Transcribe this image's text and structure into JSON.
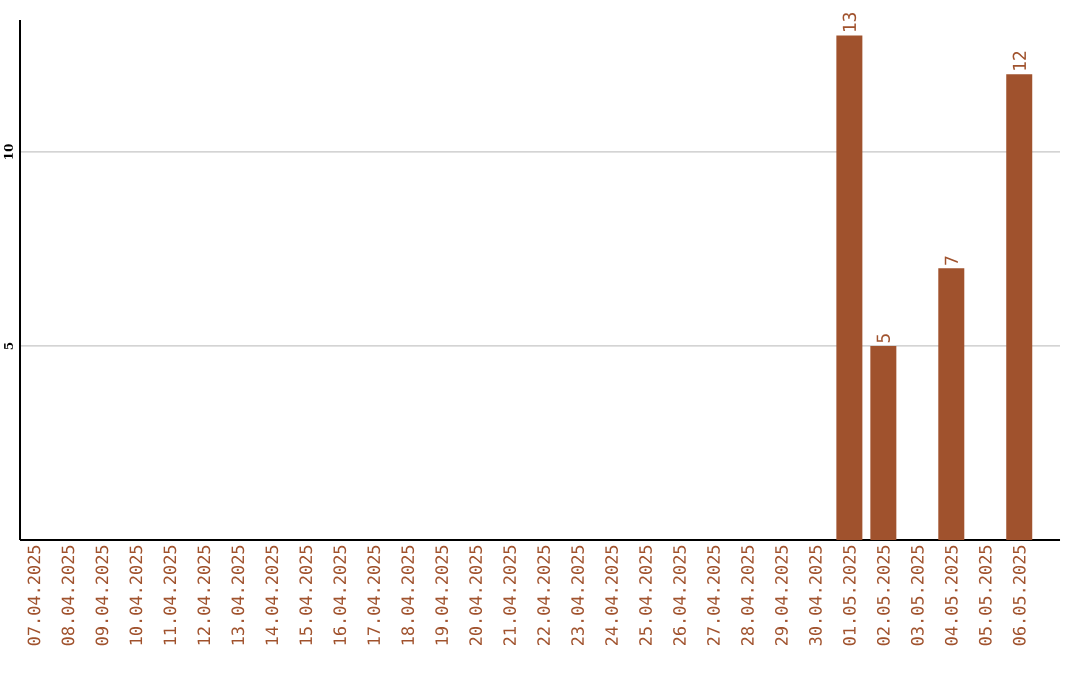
{
  "chart_data": {
    "type": "bar",
    "categories": [
      "07.04.2025",
      "08.04.2025",
      "09.04.2025",
      "10.04.2025",
      "11.04.2025",
      "12.04.2025",
      "13.04.2025",
      "14.04.2025",
      "15.04.2025",
      "16.04.2025",
      "17.04.2025",
      "18.04.2025",
      "19.04.2025",
      "20.04.2025",
      "21.04.2025",
      "22.04.2025",
      "23.04.2025",
      "24.04.2025",
      "25.04.2025",
      "26.04.2025",
      "27.04.2025",
      "28.04.2025",
      "29.04.2025",
      "30.04.2025",
      "01.05.2025",
      "02.05.2025",
      "03.05.2025",
      "04.05.2025",
      "05.05.2025",
      "06.05.2025"
    ],
    "values": [
      null,
      null,
      null,
      null,
      null,
      null,
      null,
      null,
      null,
      null,
      null,
      null,
      null,
      null,
      null,
      null,
      null,
      null,
      null,
      null,
      null,
      null,
      null,
      null,
      13,
      5,
      null,
      7,
      null,
      12
    ],
    "color": "#a0522d",
    "ylim": [
      0,
      13.4
    ],
    "yticks": [
      5,
      10
    ],
    "grid": "y",
    "data_labels": true
  }
}
